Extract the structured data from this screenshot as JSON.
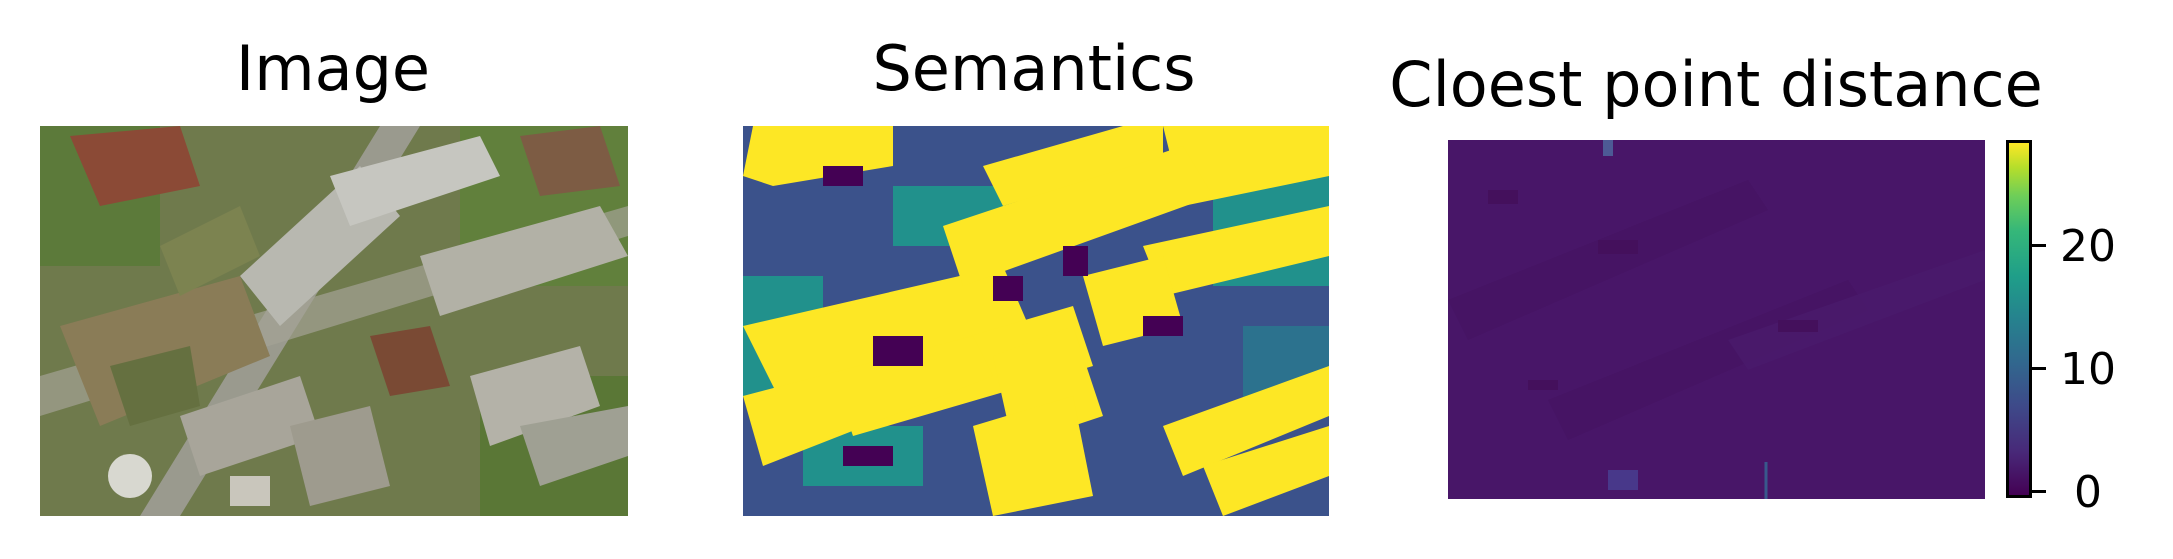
{
  "panels": {
    "image": {
      "title": "Image"
    },
    "semantics": {
      "title": "Semantics",
      "colors": {
        "low": "#3b528b",
        "mid": "#21918c",
        "high": "#fde725",
        "void": "#440154"
      }
    },
    "distance": {
      "title": "Cloest point distance",
      "base_color": "#481668"
    }
  },
  "colorbar": {
    "ticks": [
      "0",
      "10",
      "20"
    ],
    "range": [
      0,
      27
    ],
    "colormap": "viridis"
  }
}
